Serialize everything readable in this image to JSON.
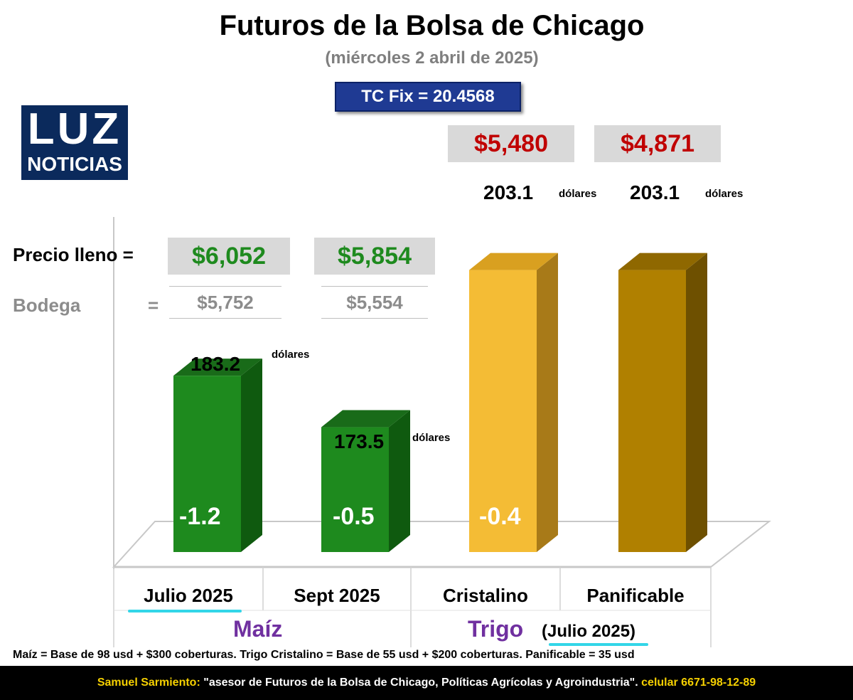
{
  "title": "Futuros de la Bolsa de Chicago",
  "subtitle": "(miércoles 2 abril de 2025)",
  "tc_fix": "TC Fix = 20.4568",
  "logo": {
    "line1": "LUZ",
    "line2": "NOTICIAS"
  },
  "labels": {
    "precio_lleno": "Precio lleno =",
    "bodega": "Bodega",
    "bodega_eq": "="
  },
  "precio_lleno": {
    "julio": "$6,052",
    "sept": "$5,854",
    "cristalino": "$5,480",
    "panificable": "$4,871"
  },
  "bodega": {
    "julio": "$5,752",
    "sept": "$5,554"
  },
  "unit": "dólares",
  "groups": {
    "maiz": "Maíz",
    "trigo": "Trigo",
    "trigo_note": "(Julio 2025)"
  },
  "colors": {
    "green": "#1e8a1e",
    "green_side": "#0f5a0f",
    "green_top": "#196b19",
    "yellow": "#f4bc35",
    "yellow_side": "#a87a18",
    "yellow_top": "#d9a020",
    "gold": "#b08000",
    "gold_side": "#6e5000",
    "gold_top": "#8f6800",
    "price_red": "#c00000",
    "price_green": "#1e8a1e",
    "group_purple": "#7030a0",
    "underline_cyan": "#33d6e8"
  },
  "chart_data": {
    "type": "bar",
    "categories": [
      "Julio 2025",
      "Sept 2025",
      "Cristalino",
      "Panificable"
    ],
    "values": [
      183.2,
      173.5,
      203.1,
      203.1
    ],
    "value_labels": [
      "183.2",
      "173.5",
      "203.1",
      "203.1"
    ],
    "changes": [
      "-1.2",
      "-0.5",
      "-0.4",
      ""
    ],
    "unit": "dólares",
    "group_labels": [
      "Maíz",
      "Trigo"
    ],
    "title": "Futuros de la Bolsa de Chicago",
    "subtitle": "(miércoles 2 abril de 2025)",
    "xlabel": "",
    "ylabel": "",
    "ylim": [
      150,
      208
    ],
    "grid": false
  },
  "footnote": "Maíz = Base de 98 usd + $300 coberturas. Trigo Cristalino = Base de 55 usd + $200 coberturas. Panificable = 35 usd",
  "footer": {
    "name": "Samuel Sarmiento:",
    "quote": " \"asesor de Futuros de la Bolsa de Chicago, Políticas Agrícolas y Agroindustria\". ",
    "phone_label": "celular 6671-98-12-89"
  }
}
